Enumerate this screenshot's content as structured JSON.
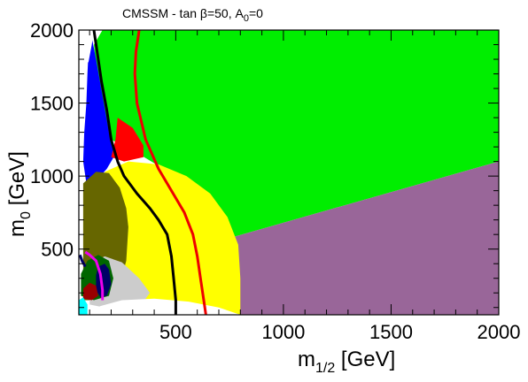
{
  "chart_data": {
    "type": "area",
    "title": {
      "main": "CMSSM  -  tan ",
      "beta": "β",
      "eq": "=50,  A",
      "sub": "0",
      "tail": "=0"
    },
    "xlabel": {
      "main": "m",
      "sub": "1/2",
      "unit": " [GeV]"
    },
    "ylabel": {
      "main": "m",
      "sub": "0",
      "unit": " [GeV]"
    },
    "xlim": [
      50,
      2000
    ],
    "ylim": [
      50,
      2000
    ],
    "xticks": [
      500,
      1000,
      1500,
      2000
    ],
    "yticks": [
      500,
      1000,
      1500,
      2000
    ],
    "grid": false,
    "regions": [
      {
        "name": "green",
        "color": "#00ee00",
        "polygon": [
          [
            160,
            2000
          ],
          [
            2000,
            2000
          ],
          [
            2000,
            1100
          ],
          [
            760,
            580
          ],
          [
            500,
            1000
          ],
          [
            330,
            1150
          ],
          [
            200,
            1250
          ],
          [
            150,
            1500
          ],
          [
            130,
            1750
          ],
          [
            120,
            1900
          ]
        ]
      },
      {
        "name": "purple",
        "color": "#996699",
        "polygon": [
          [
            760,
            580
          ],
          [
            2000,
            1100
          ],
          [
            2000,
            50
          ],
          [
            800,
            50
          ]
        ]
      },
      {
        "name": "yellow",
        "color": "#ffff00",
        "polygon": [
          [
            170,
            1030
          ],
          [
            280,
            1100
          ],
          [
            420,
            1080
          ],
          [
            550,
            1000
          ],
          [
            660,
            880
          ],
          [
            740,
            720
          ],
          [
            790,
            530
          ],
          [
            800,
            300
          ],
          [
            800,
            50
          ],
          [
            200,
            50
          ],
          [
            190,
            500
          ]
        ]
      },
      {
        "name": "blue",
        "color": "#0000ff",
        "polygon": [
          [
            110,
            1950
          ],
          [
            130,
            1800
          ],
          [
            160,
            1550
          ],
          [
            190,
            1300
          ],
          [
            220,
            1150
          ],
          [
            180,
            1050
          ],
          [
            120,
            950
          ],
          [
            90,
            900
          ],
          [
            70,
            1100
          ],
          [
            75,
            1300
          ],
          [
            85,
            1500
          ],
          [
            90,
            1700
          ],
          [
            95,
            1850
          ]
        ]
      },
      {
        "name": "red",
        "color": "#ff0000",
        "polygon": [
          [
            230,
            1400
          ],
          [
            300,
            1330
          ],
          [
            350,
            1210
          ],
          [
            350,
            1130
          ],
          [
            260,
            1100
          ],
          [
            200,
            1130
          ],
          [
            220,
            1250
          ]
        ]
      },
      {
        "name": "olive",
        "color": "#666600",
        "polygon": [
          [
            70,
            950
          ],
          [
            130,
            1030
          ],
          [
            190,
            1020
          ],
          [
            240,
            920
          ],
          [
            270,
            780
          ],
          [
            280,
            650
          ],
          [
            270,
            420
          ],
          [
            230,
            200
          ],
          [
            150,
            150
          ],
          [
            70,
            150
          ]
        ]
      },
      {
        "name": "grey",
        "color": "#cccccc",
        "polygon": [
          [
            100,
            400
          ],
          [
            170,
            450
          ],
          [
            250,
            410
          ],
          [
            330,
            300
          ],
          [
            380,
            200
          ],
          [
            340,
            120
          ],
          [
            200,
            90
          ],
          [
            100,
            120
          ]
        ]
      },
      {
        "name": "dark-green",
        "color": "#006600",
        "polygon": [
          [
            60,
            330
          ],
          [
            90,
            420
          ],
          [
            140,
            460
          ],
          [
            190,
            420
          ],
          [
            210,
            300
          ],
          [
            190,
            180
          ],
          [
            120,
            150
          ],
          [
            60,
            180
          ]
        ]
      },
      {
        "name": "navy",
        "color": "#000066",
        "polygon": [
          [
            140,
            380
          ],
          [
            170,
            400
          ],
          [
            190,
            360
          ],
          [
            200,
            260
          ],
          [
            180,
            180
          ],
          [
            150,
            170
          ],
          [
            130,
            220
          ],
          [
            130,
            320
          ]
        ]
      },
      {
        "name": "dark-red",
        "color": "#990000",
        "polygon": [
          [
            70,
            230
          ],
          [
            100,
            270
          ],
          [
            130,
            250
          ],
          [
            140,
            180
          ],
          [
            110,
            150
          ],
          [
            70,
            160
          ]
        ]
      },
      {
        "name": "cyan",
        "color": "#00ffff",
        "polygon": [
          [
            50,
            50
          ],
          [
            50,
            150
          ],
          [
            70,
            170
          ],
          [
            90,
            120
          ],
          [
            90,
            50
          ]
        ]
      },
      {
        "name": "white-bottom",
        "color": "#ffffff",
        "polygon": [
          [
            90,
            50
          ],
          [
            800,
            50
          ],
          [
            700,
            100
          ],
          [
            560,
            140
          ],
          [
            400,
            160
          ],
          [
            250,
            150
          ],
          [
            150,
            110
          ]
        ]
      },
      {
        "name": "white-corner",
        "color": "#ffffff",
        "polygon": [
          [
            50,
            2000
          ],
          [
            120,
            2000
          ],
          [
            110,
            1900
          ],
          [
            95,
            1780
          ],
          [
            50,
            1750
          ]
        ]
      }
    ],
    "curves": [
      {
        "name": "black-line",
        "color": "#000000",
        "points": [
          [
            120,
            2000
          ],
          [
            135,
            1850
          ],
          [
            155,
            1650
          ],
          [
            180,
            1450
          ],
          [
            200,
            1250
          ],
          [
            230,
            1100
          ],
          [
            260,
            1000
          ],
          [
            320,
            880
          ],
          [
            380,
            780
          ],
          [
            420,
            700
          ],
          [
            460,
            600
          ],
          [
            480,
            450
          ],
          [
            490,
            300
          ],
          [
            500,
            150
          ],
          [
            500,
            50
          ]
        ]
      },
      {
        "name": "red-line",
        "color": "#ee0000",
        "points": [
          [
            330,
            2000
          ],
          [
            315,
            1850
          ],
          [
            310,
            1700
          ],
          [
            320,
            1500
          ],
          [
            360,
            1250
          ],
          [
            420,
            1050
          ],
          [
            480,
            900
          ],
          [
            540,
            750
          ],
          [
            580,
            600
          ],
          [
            600,
            450
          ],
          [
            615,
            300
          ],
          [
            630,
            150
          ],
          [
            640,
            50
          ]
        ]
      },
      {
        "name": "magenta-line",
        "color": "#ee00ee",
        "points": [
          [
            80,
            480
          ],
          [
            100,
            460
          ],
          [
            130,
            420
          ],
          [
            150,
            330
          ],
          [
            160,
            220
          ],
          [
            160,
            150
          ]
        ]
      },
      {
        "name": "navy-line",
        "color": "#000066",
        "points": [
          [
            55,
            460
          ],
          [
            65,
            420
          ],
          [
            80,
            380
          ]
        ]
      }
    ]
  }
}
